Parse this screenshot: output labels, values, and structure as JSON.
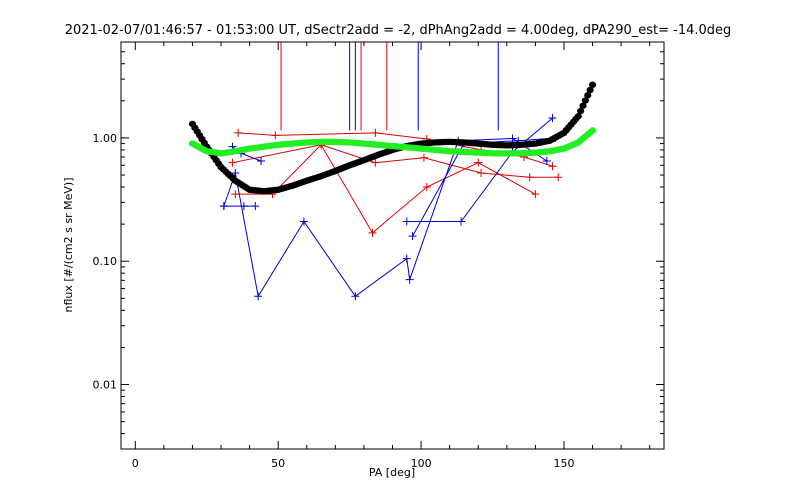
{
  "chart_data": {
    "type": "scatter",
    "title": "2021-02-07/01:46:57 - 01:53:00 UT, dSectr2add = -2, dPhAng2add = 4.00deg, dPA290_est= -14.0deg",
    "xlabel": "PA [deg]",
    "ylabel": "nflux [#/(cm2 s sr MeV)]",
    "xlim": [
      -5,
      185
    ],
    "ylim": [
      0.003,
      6
    ],
    "yscale": "log",
    "grid": false,
    "legend": "none",
    "xticks": [
      0,
      50,
      100,
      150
    ],
    "xtick_labels": [
      "0",
      "50",
      "100",
      "150"
    ],
    "yticks": [
      0.01,
      0.1,
      1
    ],
    "ytick_labels": [
      "0.01",
      "0.10",
      "1.00"
    ],
    "colors": {
      "red": "#e00000",
      "blue": "#0000cc",
      "black": "#000000",
      "green": "#22ee22"
    },
    "series": [
      {
        "color": "red",
        "style": "line+cross",
        "x": [
          35,
          48,
          65,
          83,
          102,
          120,
          140
        ],
        "y": [
          0.35,
          0.35,
          0.88,
          0.17,
          0.4,
          0.63,
          0.35
        ]
      },
      {
        "color": "red",
        "style": "line+cross",
        "x": [
          34,
          65,
          84,
          101,
          121,
          138,
          148
        ],
        "y": [
          0.63,
          0.88,
          0.63,
          0.69,
          0.52,
          0.48,
          0.48
        ]
      },
      {
        "color": "red",
        "style": "line+cross",
        "x": [
          36,
          49,
          84,
          102,
          121,
          136,
          146
        ],
        "y": [
          1.1,
          1.05,
          1.1,
          0.98,
          0.8,
          0.7,
          0.59
        ]
      },
      {
        "color": "blue",
        "style": "line+cross",
        "x": [
          31,
          35,
          43,
          59,
          77,
          95,
          96,
          113,
          132,
          144
        ],
        "y": [
          0.28,
          0.52,
          0.052,
          0.21,
          0.052,
          0.105,
          0.071,
          0.95,
          0.99,
          0.65
        ]
      },
      {
        "color": "blue",
        "style": "line+cross",
        "x": [
          31,
          38,
          42
        ],
        "y": [
          0.28,
          0.28,
          0.28
        ]
      },
      {
        "color": "blue",
        "style": "line+cross",
        "x": [
          34,
          37,
          44
        ],
        "y": [
          0.85,
          0.75,
          0.65
        ]
      },
      {
        "color": "blue",
        "style": "line+cross",
        "x": [
          95,
          114,
          132,
          146
        ],
        "y": [
          0.21,
          0.21,
          0.77,
          1.45
        ]
      },
      {
        "color": "blue",
        "style": "line+cross",
        "x": [
          97,
          115,
          134,
          147
        ],
        "y": [
          0.16,
          0.9,
          0.95,
          1.0
        ]
      },
      {
        "color": "black",
        "style": "thick-dotted-curve",
        "x": [
          20,
          25,
          30,
          35,
          40,
          45,
          50,
          55,
          60,
          65,
          70,
          75,
          80,
          85,
          90,
          95,
          100,
          105,
          110,
          115,
          120,
          125,
          130,
          135,
          140,
          145,
          150,
          155,
          160
        ],
        "y": [
          1.3,
          0.85,
          0.58,
          0.45,
          0.38,
          0.37,
          0.38,
          0.41,
          0.45,
          0.49,
          0.54,
          0.6,
          0.66,
          0.73,
          0.8,
          0.86,
          0.9,
          0.92,
          0.93,
          0.92,
          0.9,
          0.88,
          0.87,
          0.88,
          0.9,
          0.95,
          1.1,
          1.5,
          2.7
        ]
      },
      {
        "color": "green",
        "style": "thick-dotted-curve",
        "x": [
          20,
          25,
          30,
          35,
          40,
          45,
          50,
          55,
          60,
          65,
          70,
          75,
          80,
          85,
          90,
          95,
          100,
          105,
          110,
          115,
          120,
          125,
          130,
          135,
          140,
          145,
          150,
          155,
          160
        ],
        "y": [
          0.9,
          0.78,
          0.75,
          0.78,
          0.82,
          0.85,
          0.88,
          0.9,
          0.92,
          0.93,
          0.93,
          0.92,
          0.9,
          0.88,
          0.86,
          0.84,
          0.82,
          0.8,
          0.78,
          0.77,
          0.76,
          0.75,
          0.75,
          0.75,
          0.76,
          0.78,
          0.82,
          0.92,
          1.15
        ]
      },
      {
        "color": "red",
        "style": "vertical-line",
        "x": [
          51,
          79,
          88
        ],
        "y_top": [
          6,
          6,
          6
        ],
        "y_bottom": [
          1.15,
          1.15,
          1.15
        ]
      },
      {
        "color": "blue",
        "style": "vertical-line",
        "x": [
          75,
          77,
          99,
          127
        ],
        "y_top": [
          6,
          6,
          6,
          6
        ],
        "y_bottom": [
          1.15,
          1.15,
          1.15,
          1.15
        ]
      }
    ]
  }
}
